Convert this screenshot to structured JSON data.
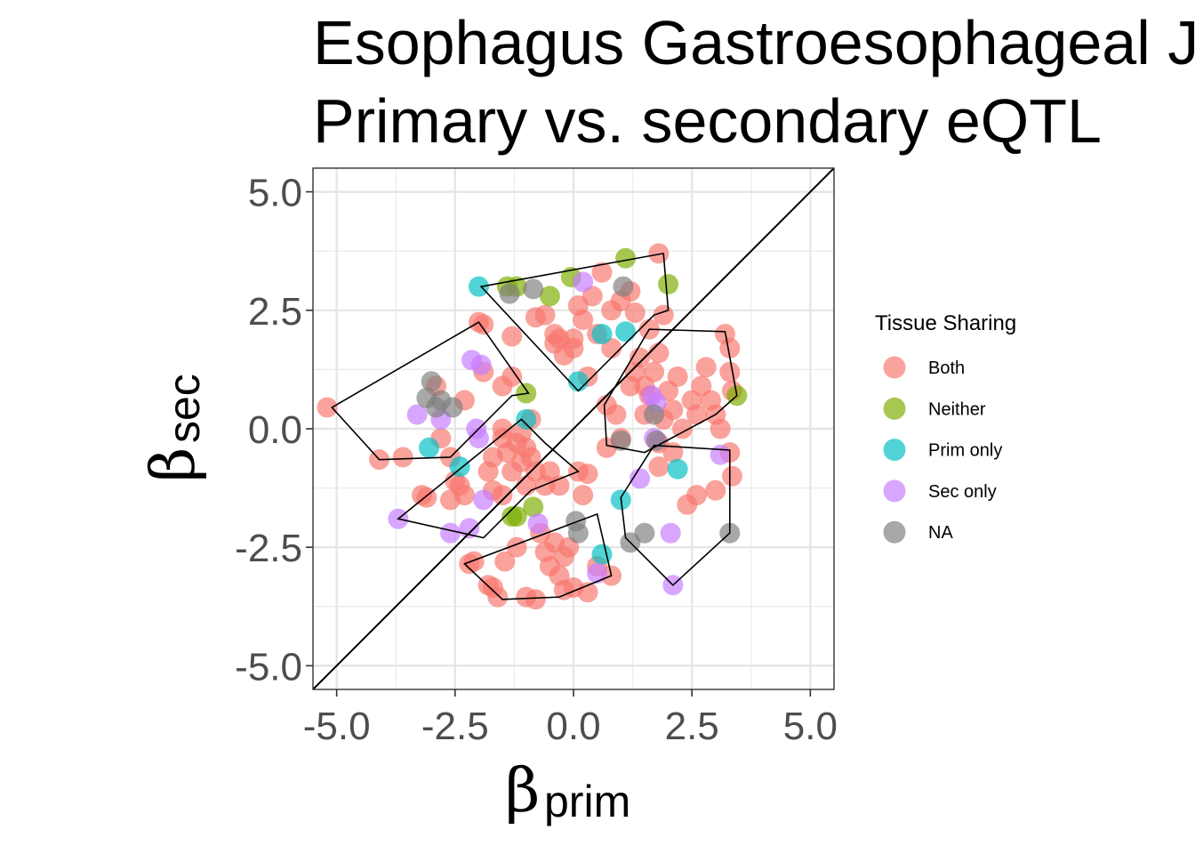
{
  "chart_data": {
    "type": "scatter",
    "title_lines": [
      "Esophagus Gastroesophageal Junction",
      "Primary vs. secondary eQTL"
    ],
    "xlabel": {
      "greek": "β",
      "sub": "prim"
    },
    "ylabel": {
      "greek": "β",
      "sub": "sec"
    },
    "xlim": [
      -5.5,
      5.5
    ],
    "ylim": [
      -5.5,
      5.5
    ],
    "x_ticks": [
      -5,
      -2.5,
      0,
      2.5,
      5
    ],
    "y_ticks": [
      -5,
      -2.5,
      0,
      2.5,
      5
    ],
    "x_tick_labels": [
      "-5.0",
      "-2.5",
      "0.0",
      "2.5",
      "5.0"
    ],
    "y_tick_labels": [
      "-5.0",
      "-2.5",
      "0.0",
      "2.5",
      "5.0"
    ],
    "grid": true,
    "reference_line": "y = x",
    "legend": {
      "title": "Tissue Sharing",
      "position": "right",
      "entries": [
        {
          "label": "Both",
          "color": "#F8766D"
        },
        {
          "label": "Neither",
          "color": "#7CAE00"
        },
        {
          "label": "Prim only",
          "color": "#00BFC4"
        },
        {
          "label": "Sec only",
          "color": "#C77CFF"
        },
        {
          "label": "NA",
          "color": "#7F7F7F"
        }
      ]
    },
    "series": [
      {
        "name": "Both",
        "color": "#F8766D",
        "points": [
          [
            -5.2,
            0.45
          ],
          [
            -4.1,
            -0.65
          ],
          [
            -3.6,
            -0.6
          ],
          [
            -3.2,
            -1.4
          ],
          [
            -3.1,
            -1.45
          ],
          [
            -2.9,
            0.9
          ],
          [
            -2.8,
            -0.2
          ],
          [
            -2.6,
            -0.6
          ],
          [
            -2.6,
            -1.5
          ],
          [
            -2.5,
            -1.1
          ],
          [
            -2.3,
            -1.4
          ],
          [
            -2.2,
            -2.85
          ],
          [
            -2.1,
            -2.8
          ],
          [
            -2.0,
            2.25
          ],
          [
            -1.9,
            2.2
          ],
          [
            -1.8,
            -0.9
          ],
          [
            -1.8,
            -3.3
          ],
          [
            -1.7,
            -3.35
          ],
          [
            -1.6,
            -3.55
          ],
          [
            -1.5,
            0.0
          ],
          [
            -1.4,
            -0.5
          ],
          [
            -1.3,
            -0.9
          ],
          [
            -1.3,
            1.1
          ],
          [
            -1.2,
            -0.3
          ],
          [
            -1.2,
            -2.5
          ],
          [
            -1.1,
            -0.7
          ],
          [
            -1.0,
            -0.4
          ],
          [
            -1.0,
            -1.2
          ],
          [
            -0.9,
            -0.6
          ],
          [
            -0.8,
            -0.9
          ],
          [
            -1.45,
            -2.8
          ],
          [
            -1.0,
            -3.55
          ],
          [
            -0.8,
            -3.6
          ],
          [
            -0.7,
            -2.2
          ],
          [
            -0.6,
            -2.6
          ],
          [
            -0.5,
            -2.9
          ],
          [
            -0.4,
            -2.4
          ],
          [
            -0.3,
            -3.1
          ],
          [
            -0.2,
            -2.7
          ],
          [
            -0.2,
            -3.4
          ],
          [
            -0.1,
            -2.5
          ],
          [
            0.0,
            -3.35
          ],
          [
            0.3,
            -3.45
          ],
          [
            0.5,
            -2.9
          ],
          [
            0.8,
            -3.1
          ],
          [
            0.2,
            -1.4
          ],
          [
            -0.4,
            2.0
          ],
          [
            -0.6,
            2.4
          ],
          [
            -0.8,
            2.35
          ],
          [
            -1.3,
            1.95
          ],
          [
            -1.5,
            0.9
          ],
          [
            -2.3,
            0.6
          ],
          [
            -1.9,
            1.2
          ],
          [
            -0.4,
            1.8
          ],
          [
            -0.2,
            1.55
          ],
          [
            0.0,
            1.9
          ],
          [
            0.1,
            2.6
          ],
          [
            0.2,
            2.3
          ],
          [
            0.4,
            2.8
          ],
          [
            0.5,
            2.0
          ],
          [
            0.6,
            3.3
          ],
          [
            0.8,
            2.5
          ],
          [
            0.8,
            1.7
          ],
          [
            1.0,
            2.7
          ],
          [
            1.2,
            2.9
          ],
          [
            1.3,
            2.45
          ],
          [
            1.4,
            1.5
          ],
          [
            1.5,
            0.9
          ],
          [
            1.6,
            2.1
          ],
          [
            1.7,
            1.2
          ],
          [
            1.8,
            3.7
          ],
          [
            1.9,
            2.4
          ],
          [
            1.2,
            0.9
          ],
          [
            1.3,
            1.2
          ],
          [
            1.5,
            0.3
          ],
          [
            1.6,
            0.7
          ],
          [
            1.8,
            1.6
          ],
          [
            1.9,
            0.2
          ],
          [
            2.0,
            0.8
          ],
          [
            2.1,
            0.4
          ],
          [
            2.2,
            1.1
          ],
          [
            2.3,
            0.0
          ],
          [
            2.5,
            0.6
          ],
          [
            2.6,
            0.3
          ],
          [
            2.7,
            0.9
          ],
          [
            2.8,
            1.3
          ],
          [
            2.9,
            0.6
          ],
          [
            3.0,
            0.3
          ],
          [
            3.1,
            0.0
          ],
          [
            3.2,
            2.0
          ],
          [
            3.3,
            1.7
          ],
          [
            3.3,
            1.2
          ],
          [
            3.35,
            0.8
          ],
          [
            3.3,
            -0.5
          ],
          [
            3.35,
            -1.0
          ],
          [
            3.0,
            -1.3
          ],
          [
            2.6,
            -1.4
          ],
          [
            2.4,
            -1.6
          ],
          [
            2.1,
            -0.5
          ],
          [
            1.8,
            -0.8
          ],
          [
            1.8,
            -0.3
          ],
          [
            0.7,
            -0.4
          ],
          [
            1.0,
            -0.2
          ],
          [
            0.9,
            0.3
          ],
          [
            0.7,
            0.5
          ],
          [
            0.0,
            1.7
          ],
          [
            -0.3,
            1.9
          ],
          [
            0.3,
            1.1
          ],
          [
            -0.6,
            -1.2
          ],
          [
            0.1,
            -0.9
          ],
          [
            0.3,
            -0.95
          ],
          [
            -0.3,
            -1.2
          ],
          [
            -0.5,
            -0.9
          ],
          [
            -1.5,
            -1.4
          ],
          [
            -1.7,
            -1.3
          ],
          [
            -2.4,
            -1.2
          ],
          [
            -1.1,
            -0.1
          ],
          [
            -0.9,
            0.2
          ],
          [
            -1.5,
            -0.2
          ],
          [
            -1.7,
            -0.6
          ]
        ]
      },
      {
        "name": "Neither",
        "color": "#7CAE00",
        "points": [
          [
            -1.4,
            3.0
          ],
          [
            -1.2,
            3.0
          ],
          [
            -0.5,
            2.8
          ],
          [
            -0.05,
            3.2
          ],
          [
            1.1,
            3.6
          ],
          [
            2.0,
            3.05
          ],
          [
            -1.0,
            0.75
          ],
          [
            3.45,
            0.7
          ],
          [
            -1.3,
            -1.85
          ],
          [
            -1.2,
            -1.85
          ],
          [
            -0.85,
            -1.65
          ]
        ]
      },
      {
        "name": "Prim only",
        "color": "#00BFC4",
        "points": [
          [
            -2.0,
            3.0
          ],
          [
            0.1,
            1.0
          ],
          [
            0.6,
            2.0
          ],
          [
            1.1,
            2.05
          ],
          [
            -1.0,
            0.2
          ],
          [
            -3.05,
            -0.4
          ],
          [
            -2.4,
            -0.8
          ],
          [
            1.0,
            -1.5
          ],
          [
            0.6,
            -2.65
          ],
          [
            2.2,
            -0.85
          ]
        ]
      },
      {
        "name": "Sec only",
        "color": "#C77CFF",
        "points": [
          [
            0.2,
            3.1
          ],
          [
            -2.15,
            1.45
          ],
          [
            -1.95,
            1.35
          ],
          [
            -3.3,
            0.3
          ],
          [
            -2.8,
            0.2
          ],
          [
            -2.05,
            0.0
          ],
          [
            -2.0,
            -0.2
          ],
          [
            -3.7,
            -1.9
          ],
          [
            -2.6,
            -2.2
          ],
          [
            -2.2,
            -2.1
          ],
          [
            -1.9,
            -1.5
          ],
          [
            -0.75,
            -2.0
          ],
          [
            0.5,
            -3.05
          ],
          [
            1.4,
            -1.05
          ],
          [
            1.7,
            -0.2
          ],
          [
            1.75,
            0.55
          ],
          [
            1.65,
            0.7
          ],
          [
            2.05,
            -2.2
          ],
          [
            2.1,
            -3.3
          ],
          [
            3.1,
            -0.55
          ]
        ]
      },
      {
        "name": "NA",
        "color": "#7F7F7F",
        "points": [
          [
            -3.0,
            1.0
          ],
          [
            -3.1,
            0.65
          ],
          [
            -2.9,
            0.45
          ],
          [
            -2.8,
            0.6
          ],
          [
            -2.55,
            0.45
          ],
          [
            -1.35,
            2.85
          ],
          [
            -0.85,
            2.95
          ],
          [
            1.05,
            3.0
          ],
          [
            1.0,
            -0.25
          ],
          [
            1.7,
            0.3
          ],
          [
            1.75,
            -0.25
          ],
          [
            0.05,
            -1.95
          ],
          [
            0.1,
            -2.2
          ],
          [
            1.2,
            -2.4
          ],
          [
            1.5,
            -2.2
          ],
          [
            3.3,
            -2.2
          ]
        ]
      }
    ],
    "hulls": [
      [
        [
          -5.1,
          0.45
        ],
        [
          -2.0,
          2.25
        ],
        [
          -0.95,
          0.75
        ],
        [
          -1.3,
          0.7
        ],
        [
          -2.6,
          -0.6
        ],
        [
          -4.1,
          -0.65
        ]
      ],
      [
        [
          -1.95,
          3.0
        ],
        [
          1.9,
          3.7
        ],
        [
          2.0,
          2.5
        ],
        [
          1.7,
          2.4
        ],
        [
          0.1,
          0.8
        ]
      ],
      [
        [
          1.6,
          2.1
        ],
        [
          3.2,
          2.05
        ],
        [
          3.45,
          0.7
        ],
        [
          3.0,
          0.3
        ],
        [
          1.5,
          -0.5
        ],
        [
          0.7,
          -0.35
        ],
        [
          0.65,
          0.5
        ]
      ],
      [
        [
          -3.7,
          -1.9
        ],
        [
          -1.9,
          -2.3
        ],
        [
          -0.9,
          -1.3
        ],
        [
          0.1,
          -0.9
        ],
        [
          -0.6,
          -0.3
        ],
        [
          -1.1,
          0.2
        ]
      ],
      [
        [
          -2.3,
          -2.85
        ],
        [
          -1.5,
          -3.6
        ],
        [
          -0.3,
          -3.55
        ],
        [
          0.8,
          -3.1
        ],
        [
          0.5,
          -1.8
        ]
      ],
      [
        [
          1.0,
          -1.45
        ],
        [
          1.7,
          -0.35
        ],
        [
          3.3,
          -0.45
        ],
        [
          3.3,
          -2.2
        ],
        [
          2.1,
          -3.3
        ],
        [
          1.1,
          -2.3
        ]
      ]
    ]
  }
}
